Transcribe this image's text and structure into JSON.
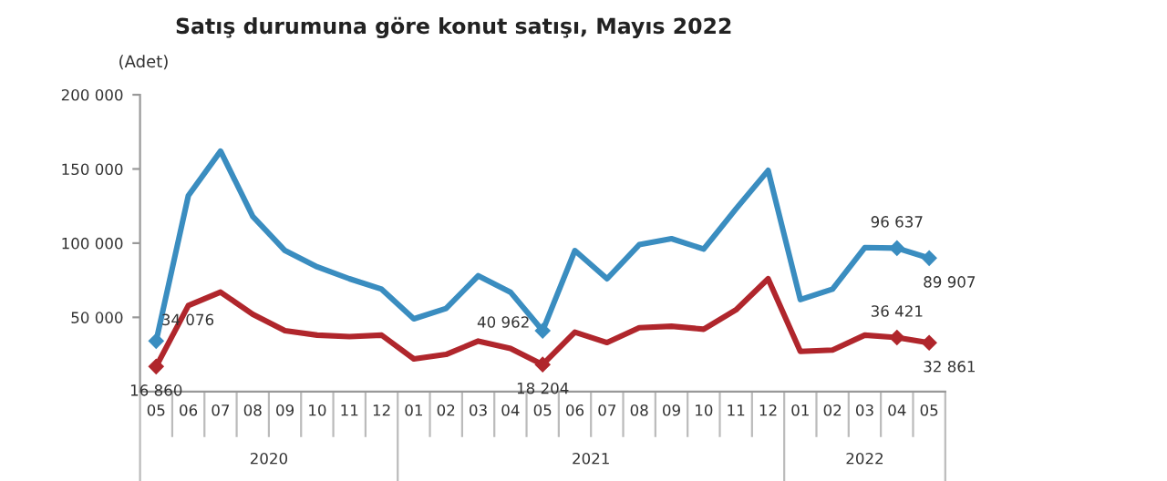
{
  "chart_data": {
    "type": "line",
    "title": "Satış durumuna göre konut satışı, Mayıs 2022",
    "ylabel": "(Adet)",
    "categories": [
      "05",
      "06",
      "07",
      "08",
      "09",
      "10",
      "11",
      "12",
      "01",
      "02",
      "03",
      "04",
      "05",
      "06",
      "07",
      "08",
      "09",
      "10",
      "11",
      "12",
      "01",
      "02",
      "03",
      "04",
      "05"
    ],
    "annotations": [
      "2020",
      "2021",
      "2022"
    ],
    "series": [
      {
        "color": "#3a8dc0",
        "values": [
          34076,
          132000,
          162000,
          118000,
          95000,
          84000,
          76000,
          69000,
          49000,
          56000,
          78000,
          67000,
          40962,
          95000,
          76000,
          99000,
          103000,
          96000,
          123000,
          149000,
          62000,
          69000,
          97000,
          96637,
          89907
        ],
        "value_labels": [
          "34 076",
          null,
          null,
          null,
          null,
          null,
          null,
          null,
          null,
          null,
          null,
          null,
          "40 962",
          null,
          null,
          null,
          null,
          null,
          null,
          null,
          null,
          null,
          null,
          "96 637",
          "89 907"
        ]
      },
      {
        "color": "#b0262c",
        "values": [
          16860,
          58000,
          67000,
          52000,
          41000,
          38000,
          37000,
          38000,
          22000,
          25000,
          34000,
          29000,
          18204,
          40000,
          33000,
          43000,
          44000,
          42000,
          55000,
          76000,
          27000,
          28000,
          38000,
          36421,
          32861
        ],
        "value_labels": [
          "16 860",
          null,
          null,
          null,
          null,
          null,
          null,
          null,
          null,
          null,
          null,
          null,
          "18 204",
          null,
          null,
          null,
          null,
          null,
          null,
          null,
          null,
          null,
          null,
          "36 421",
          "32 861"
        ]
      }
    ],
    "ylim": [
      0,
      200000
    ],
    "yticks": [
      {
        "value": 50000,
        "label": "50 000"
      },
      {
        "value": 100000,
        "label": "100 000"
      },
      {
        "value": 150000,
        "label": "150 000"
      },
      {
        "value": 200000,
        "label": "200 000"
      }
    ],
    "grid": false,
    "legend": false
  }
}
